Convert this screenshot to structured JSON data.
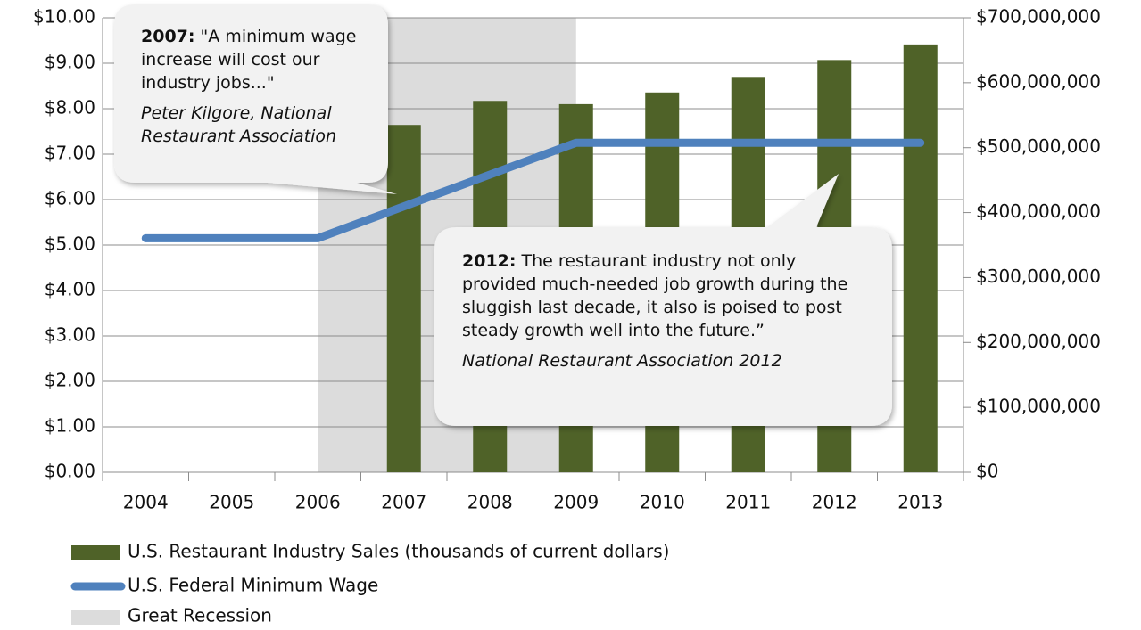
{
  "chart_data": {
    "type": "bar",
    "categories": [
      "2004",
      "2005",
      "2006",
      "2007",
      "2008",
      "2009",
      "2010",
      "2011",
      "2012",
      "2013"
    ],
    "series": [
      {
        "name": "U.S. Restaurant Industry Sales (thousands of current dollars)",
        "type": "bar",
        "axis": "y2",
        "color": "#4f6228",
        "values": [
          null,
          null,
          null,
          535000000,
          572000000,
          567000000,
          585000000,
          609000000,
          635000000,
          659000000
        ]
      },
      {
        "name": "U.S. Federal Minimum Wage",
        "type": "line",
        "axis": "y",
        "color": "#4f81bd",
        "values": [
          5.15,
          5.15,
          5.15,
          5.85,
          6.55,
          7.25,
          7.25,
          7.25,
          7.25,
          7.25
        ]
      }
    ],
    "recession": {
      "name": "Great Recession",
      "color": "#dcdcdc",
      "from": "2007",
      "to": "2009"
    },
    "ylim": [
      0,
      10
    ],
    "yticks": [
      {
        "value": 0,
        "label": "$0.00"
      },
      {
        "value": 1,
        "label": "$1.00"
      },
      {
        "value": 2,
        "label": "$2.00"
      },
      {
        "value": 3,
        "label": "$3.00"
      },
      {
        "value": 4,
        "label": "$4.00"
      },
      {
        "value": 5,
        "label": "$5.00"
      },
      {
        "value": 6,
        "label": "$6.00"
      },
      {
        "value": 7,
        "label": "$7.00"
      },
      {
        "value": 8,
        "label": "$8.00"
      },
      {
        "value": 9,
        "label": "$9.00"
      },
      {
        "value": 10,
        "label": "$10.00"
      }
    ],
    "y2lim": [
      0,
      700000000
    ],
    "y2ticks": [
      {
        "value": 0,
        "label": "$0"
      },
      {
        "value": 100000000,
        "label": "$100,000,000"
      },
      {
        "value": 200000000,
        "label": "$200,000,000"
      },
      {
        "value": 300000000,
        "label": "$300,000,000"
      },
      {
        "value": 400000000,
        "label": "$400,000,000"
      },
      {
        "value": 500000000,
        "label": "$500,000,000"
      },
      {
        "value": 600000000,
        "label": "$600,000,000"
      },
      {
        "value": 700000000,
        "label": "$700,000,000"
      }
    ],
    "grid": true,
    "legend": "bottom-left",
    "annotations": [
      {
        "year": "2007:",
        "quote": "\"A minimum wage increase will cost our industry jobs...\"",
        "source": "Peter Kilgore, National Restaurant Association"
      },
      {
        "year": "2012:",
        "quote": "The restaurant industry not only provided much-needed job growth during the sluggish last decade, it also is poised to post steady growth well into the future.”",
        "source": "National Restaurant Association 2012"
      }
    ]
  }
}
